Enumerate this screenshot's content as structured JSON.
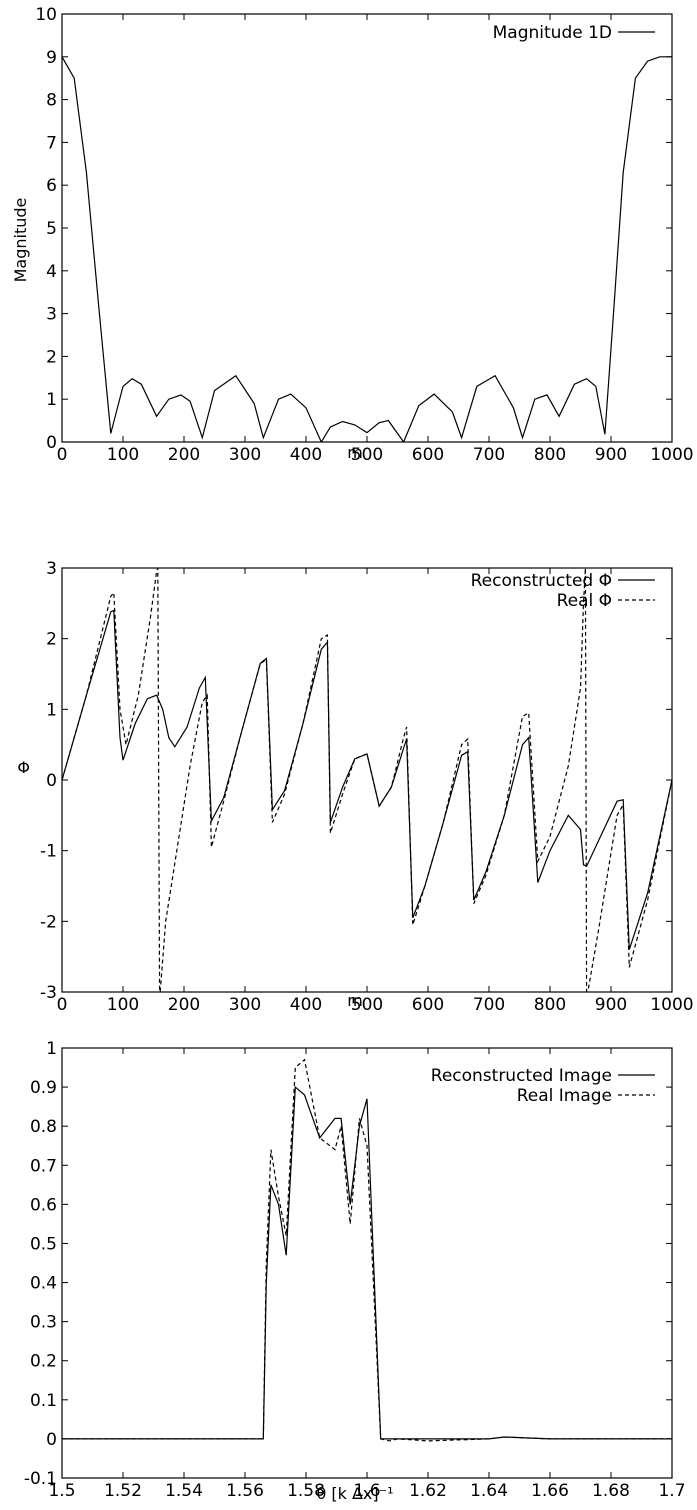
{
  "chart_data": [
    {
      "type": "line",
      "title": "",
      "xlabel": "m",
      "ylabel": "Magnitude",
      "xlim": [
        0,
        1000
      ],
      "ylim": [
        0,
        10
      ],
      "xticks": [
        "0",
        "100",
        "200",
        "300",
        "400",
        "500",
        "600",
        "700",
        "800",
        "900",
        "1000"
      ],
      "yticks": [
        "0",
        "1",
        "2",
        "3",
        "4",
        "5",
        "6",
        "7",
        "8",
        "9",
        "10"
      ],
      "legend_position": "top-right",
      "grid": false,
      "series": [
        {
          "name": "Magnitude 1D",
          "style": "solid",
          "x": [
            0,
            20,
            40,
            60,
            80,
            100,
            115,
            130,
            155,
            175,
            195,
            210,
            230,
            250,
            285,
            315,
            330,
            355,
            375,
            400,
            425,
            440,
            460,
            480,
            500,
            520,
            535,
            560,
            585,
            610,
            640,
            655,
            680,
            710,
            740,
            755,
            775,
            795,
            815,
            840,
            860,
            875,
            890,
            905,
            920,
            940,
            960,
            980,
            1000
          ],
          "y": [
            9.0,
            8.5,
            6.3,
            3.2,
            0.2,
            1.3,
            1.48,
            1.35,
            0.6,
            1.0,
            1.1,
            0.95,
            0.1,
            1.2,
            1.55,
            0.9,
            0.1,
            1.0,
            1.12,
            0.8,
            0.0,
            0.35,
            0.48,
            0.4,
            0.22,
            0.45,
            0.5,
            0.0,
            0.85,
            1.12,
            0.7,
            0.1,
            1.3,
            1.55,
            0.8,
            0.1,
            1.0,
            1.1,
            0.6,
            1.35,
            1.48,
            1.3,
            0.18,
            3.2,
            6.3,
            8.5,
            8.9,
            9.0,
            9.0
          ]
        }
      ]
    },
    {
      "type": "line",
      "title": "",
      "xlabel": "m",
      "ylabel": "Φ",
      "xlim": [
        0,
        1000
      ],
      "ylim": [
        -3,
        3
      ],
      "xticks": [
        "0",
        "100",
        "200",
        "300",
        "400",
        "500",
        "600",
        "700",
        "800",
        "900",
        "1000"
      ],
      "yticks": [
        "-3",
        "-2",
        "-1",
        "0",
        "1",
        "2",
        "3"
      ],
      "legend_position": "top-right",
      "grid": false,
      "series": [
        {
          "name": "Reconstructed Φ",
          "style": "solid",
          "x": [
            0,
            40,
            80,
            85,
            95,
            100,
            120,
            140,
            155,
            165,
            175,
            185,
            205,
            225,
            235,
            245,
            265,
            295,
            325,
            335,
            345,
            365,
            395,
            425,
            435,
            440,
            460,
            480,
            500,
            520,
            540,
            560,
            565,
            575,
            595,
            625,
            655,
            665,
            675,
            695,
            725,
            755,
            765,
            780,
            800,
            830,
            850,
            855,
            860,
            880,
            910,
            920,
            930,
            960,
            1000
          ],
          "y": [
            0.0,
            1.2,
            2.38,
            2.4,
            0.6,
            0.28,
            0.8,
            1.15,
            1.2,
            1.0,
            0.6,
            0.47,
            0.75,
            1.3,
            1.45,
            -0.58,
            -0.25,
            0.7,
            1.65,
            1.72,
            -0.42,
            -0.15,
            0.8,
            1.85,
            1.95,
            -0.6,
            -0.1,
            0.3,
            0.37,
            -0.37,
            -0.1,
            0.45,
            0.58,
            -1.95,
            -1.5,
            -0.6,
            0.35,
            0.4,
            -1.7,
            -1.3,
            -0.5,
            0.5,
            0.6,
            -1.45,
            -1.0,
            -0.5,
            -0.7,
            -1.2,
            -1.22,
            -0.85,
            -0.3,
            -0.28,
            -2.4,
            -1.6,
            0.0
          ]
        },
        {
          "name": "Real Φ",
          "style": "dashed",
          "x": [
            0,
            40,
            80,
            85,
            95,
            105,
            125,
            145,
            155,
            157,
            160,
            170,
            190,
            210,
            230,
            238,
            245,
            265,
            295,
            325,
            335,
            345,
            365,
            395,
            425,
            435,
            440,
            460,
            480,
            500,
            520,
            540,
            560,
            565,
            575,
            595,
            625,
            655,
            665,
            675,
            695,
            725,
            755,
            765,
            780,
            800,
            830,
            850,
            855,
            858,
            860,
            880,
            910,
            920,
            930,
            960,
            1000
          ],
          "y": [
            0.0,
            1.2,
            2.6,
            2.65,
            1.0,
            0.5,
            1.2,
            2.3,
            2.95,
            3.0,
            -3.1,
            -2.0,
            -0.9,
            0.2,
            1.1,
            1.2,
            -0.95,
            -0.3,
            0.7,
            1.65,
            1.7,
            -0.6,
            -0.2,
            0.8,
            2.0,
            2.05,
            -0.75,
            -0.2,
            0.3,
            0.37,
            -0.37,
            -0.1,
            0.6,
            0.75,
            -2.05,
            -1.5,
            -0.6,
            0.5,
            0.58,
            -1.75,
            -1.35,
            -0.5,
            0.9,
            0.95,
            -1.15,
            -0.8,
            0.2,
            1.3,
            2.5,
            3.0,
            -3.1,
            -2.1,
            -0.5,
            -0.35,
            -2.65,
            -1.7,
            0.0
          ]
        }
      ]
    },
    {
      "type": "line",
      "title": "",
      "xlabel": "θ [k Δx]⁻¹",
      "ylabel": "",
      "xlim": [
        1.5,
        1.7
      ],
      "ylim": [
        -0.1,
        1
      ],
      "xticks": [
        "1.5",
        "1.52",
        "1.54",
        "1.56",
        "1.58",
        "1.6",
        "1.62",
        "1.64",
        "1.66",
        "1.68",
        "1.7"
      ],
      "yticks": [
        "-0.1",
        "0",
        "0.1",
        "0.2",
        "0.3",
        "0.4",
        "0.5",
        "0.6",
        "0.7",
        "0.8",
        "0.9",
        "1"
      ],
      "legend_position": "top-right",
      "grid": false,
      "series": [
        {
          "name": "Reconstructed Image",
          "style": "solid",
          "x": [
            1.5,
            1.55,
            1.566,
            1.567,
            1.5685,
            1.571,
            1.5735,
            1.5765,
            1.5795,
            1.5845,
            1.5895,
            1.5915,
            1.5945,
            1.5975,
            1.6,
            1.6045,
            1.6075,
            1.61,
            1.62,
            1.64,
            1.645,
            1.66,
            1.7
          ],
          "y": [
            0.0,
            0.0,
            0.0,
            0.4,
            0.65,
            0.6,
            0.47,
            0.9,
            0.88,
            0.77,
            0.82,
            0.82,
            0.6,
            0.8,
            0.87,
            0.0,
            0.0,
            0.0,
            0.0,
            0.0,
            0.005,
            0.0,
            0.0
          ]
        },
        {
          "name": "Real Image",
          "style": "dashed",
          "x": [
            1.5,
            1.55,
            1.566,
            1.567,
            1.5685,
            1.571,
            1.5735,
            1.5765,
            1.5795,
            1.5845,
            1.5895,
            1.5915,
            1.5945,
            1.5975,
            1.6,
            1.6045,
            1.6075,
            1.61,
            1.62,
            1.64,
            1.645,
            1.66,
            1.7
          ],
          "y": [
            0.0,
            0.0,
            0.0,
            0.45,
            0.74,
            0.62,
            0.52,
            0.95,
            0.97,
            0.77,
            0.74,
            0.8,
            0.55,
            0.82,
            0.75,
            0.0,
            -0.005,
            0.0,
            -0.005,
            0.0,
            0.005,
            0.0,
            0.0
          ]
        }
      ]
    }
  ]
}
